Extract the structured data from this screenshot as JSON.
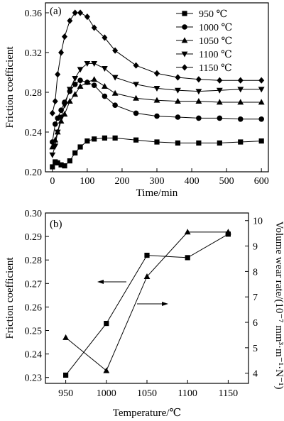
{
  "chart_data": [
    {
      "type": "line",
      "panel_label": "(a)",
      "xlabel": "Time/min",
      "ylabel": "Friction coefficient",
      "xlim": [
        -20,
        620
      ],
      "ylim": [
        0.2,
        0.37
      ],
      "xticks": [
        0,
        100,
        200,
        300,
        400,
        500,
        600
      ],
      "yticks": [
        0.2,
        0.24,
        0.28,
        0.32,
        0.36
      ],
      "legend_position": "top-right",
      "series": [
        {
          "name": "950 ℃",
          "marker": "square",
          "x": [
            0,
            8,
            15,
            25,
            35,
            50,
            65,
            80,
            100,
            120,
            150,
            180,
            240,
            300,
            360,
            420,
            480,
            540,
            600
          ],
          "y": [
            0.205,
            0.21,
            0.209,
            0.207,
            0.206,
            0.211,
            0.219,
            0.225,
            0.231,
            0.233,
            0.234,
            0.234,
            0.232,
            0.23,
            0.229,
            0.229,
            0.229,
            0.23,
            0.231
          ]
        },
        {
          "name": "1000 ℃",
          "marker": "circle",
          "x": [
            0,
            8,
            15,
            25,
            35,
            50,
            65,
            80,
            100,
            120,
            150,
            180,
            240,
            300,
            360,
            420,
            480,
            540,
            600
          ],
          "y": [
            0.23,
            0.248,
            0.254,
            0.262,
            0.27,
            0.281,
            0.288,
            0.292,
            0.29,
            0.287,
            0.276,
            0.267,
            0.259,
            0.256,
            0.255,
            0.254,
            0.254,
            0.253,
            0.253
          ]
        },
        {
          "name": "1050 ℃",
          "marker": "triangle-up",
          "x": [
            0,
            8,
            15,
            25,
            35,
            50,
            65,
            80,
            100,
            120,
            150,
            180,
            240,
            300,
            360,
            420,
            480,
            540,
            600
          ],
          "y": [
            0.225,
            0.232,
            0.24,
            0.251,
            0.258,
            0.271,
            0.278,
            0.286,
            0.29,
            0.293,
            0.286,
            0.279,
            0.274,
            0.272,
            0.271,
            0.271,
            0.27,
            0.27,
            0.27
          ]
        },
        {
          "name": "1100 ℃",
          "marker": "triangle-down",
          "x": [
            0,
            8,
            15,
            25,
            35,
            50,
            65,
            80,
            100,
            120,
            150,
            180,
            240,
            300,
            360,
            420,
            480,
            540,
            600
          ],
          "y": [
            0.217,
            0.226,
            0.24,
            0.255,
            0.267,
            0.283,
            0.294,
            0.303,
            0.309,
            0.309,
            0.304,
            0.295,
            0.288,
            0.284,
            0.282,
            0.281,
            0.282,
            0.283,
            0.283
          ]
        },
        {
          "name": "1150 ℃",
          "marker": "diamond",
          "x": [
            0,
            8,
            15,
            25,
            35,
            50,
            65,
            80,
            100,
            120,
            150,
            180,
            240,
            300,
            360,
            420,
            480,
            540,
            600
          ],
          "y": [
            0.259,
            0.271,
            0.298,
            0.32,
            0.336,
            0.352,
            0.36,
            0.36,
            0.356,
            0.345,
            0.335,
            0.322,
            0.307,
            0.299,
            0.295,
            0.293,
            0.292,
            0.292,
            0.292
          ]
        }
      ]
    },
    {
      "type": "line",
      "panel_label": "(b)",
      "xlabel": "Temperature/℃",
      "ylabel": "Friction coefficient",
      "y2label": "Volume wear rate/(10⁻⁷ mm³·m⁻¹·N⁻¹)",
      "xlim": [
        925,
        1175
      ],
      "ylim": [
        0.2275,
        0.3
      ],
      "y2lim": [
        3.6,
        10.3
      ],
      "xticks": [
        950,
        1000,
        1050,
        1100,
        1150
      ],
      "yticks": [
        0.23,
        0.24,
        0.25,
        0.26,
        0.27,
        0.28,
        0.29,
        0.3
      ],
      "y2ticks": [
        4,
        5,
        6,
        7,
        8,
        9,
        10
      ],
      "series": [
        {
          "axis": "left",
          "marker": "square",
          "x": [
            950,
            1000,
            1050,
            1100,
            1150
          ],
          "y": [
            0.231,
            0.253,
            0.282,
            0.281,
            0.291
          ]
        },
        {
          "axis": "right",
          "marker": "triangle-up",
          "x": [
            950,
            1000,
            1050,
            1100,
            1150
          ],
          "y": [
            5.4,
            4.1,
            7.8,
            9.55,
            9.55
          ]
        }
      ],
      "annotations": [
        {
          "type": "arrow",
          "direction": "left",
          "points_to": "left axis"
        },
        {
          "type": "arrow",
          "direction": "right",
          "points_to": "right axis"
        }
      ]
    }
  ]
}
